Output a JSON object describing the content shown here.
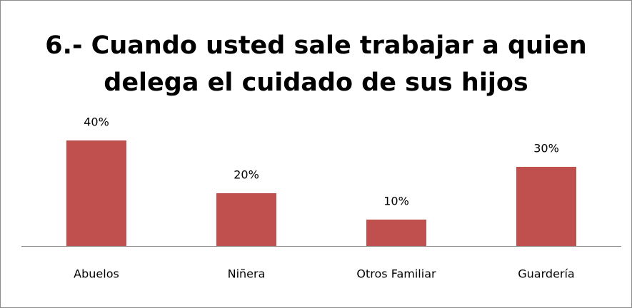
{
  "chart_data": {
    "type": "bar",
    "title": "6.- Cuando usted sale trabajar a quien delega el cuidado de sus hijos",
    "categories": [
      "Abuelos",
      "Niñera",
      "Otros Familiar",
      "Guardería"
    ],
    "values": [
      40,
      20,
      10,
      30
    ],
    "value_labels": [
      "40%",
      "20%",
      "10%",
      "30%"
    ],
    "color": "#c0504d"
  }
}
